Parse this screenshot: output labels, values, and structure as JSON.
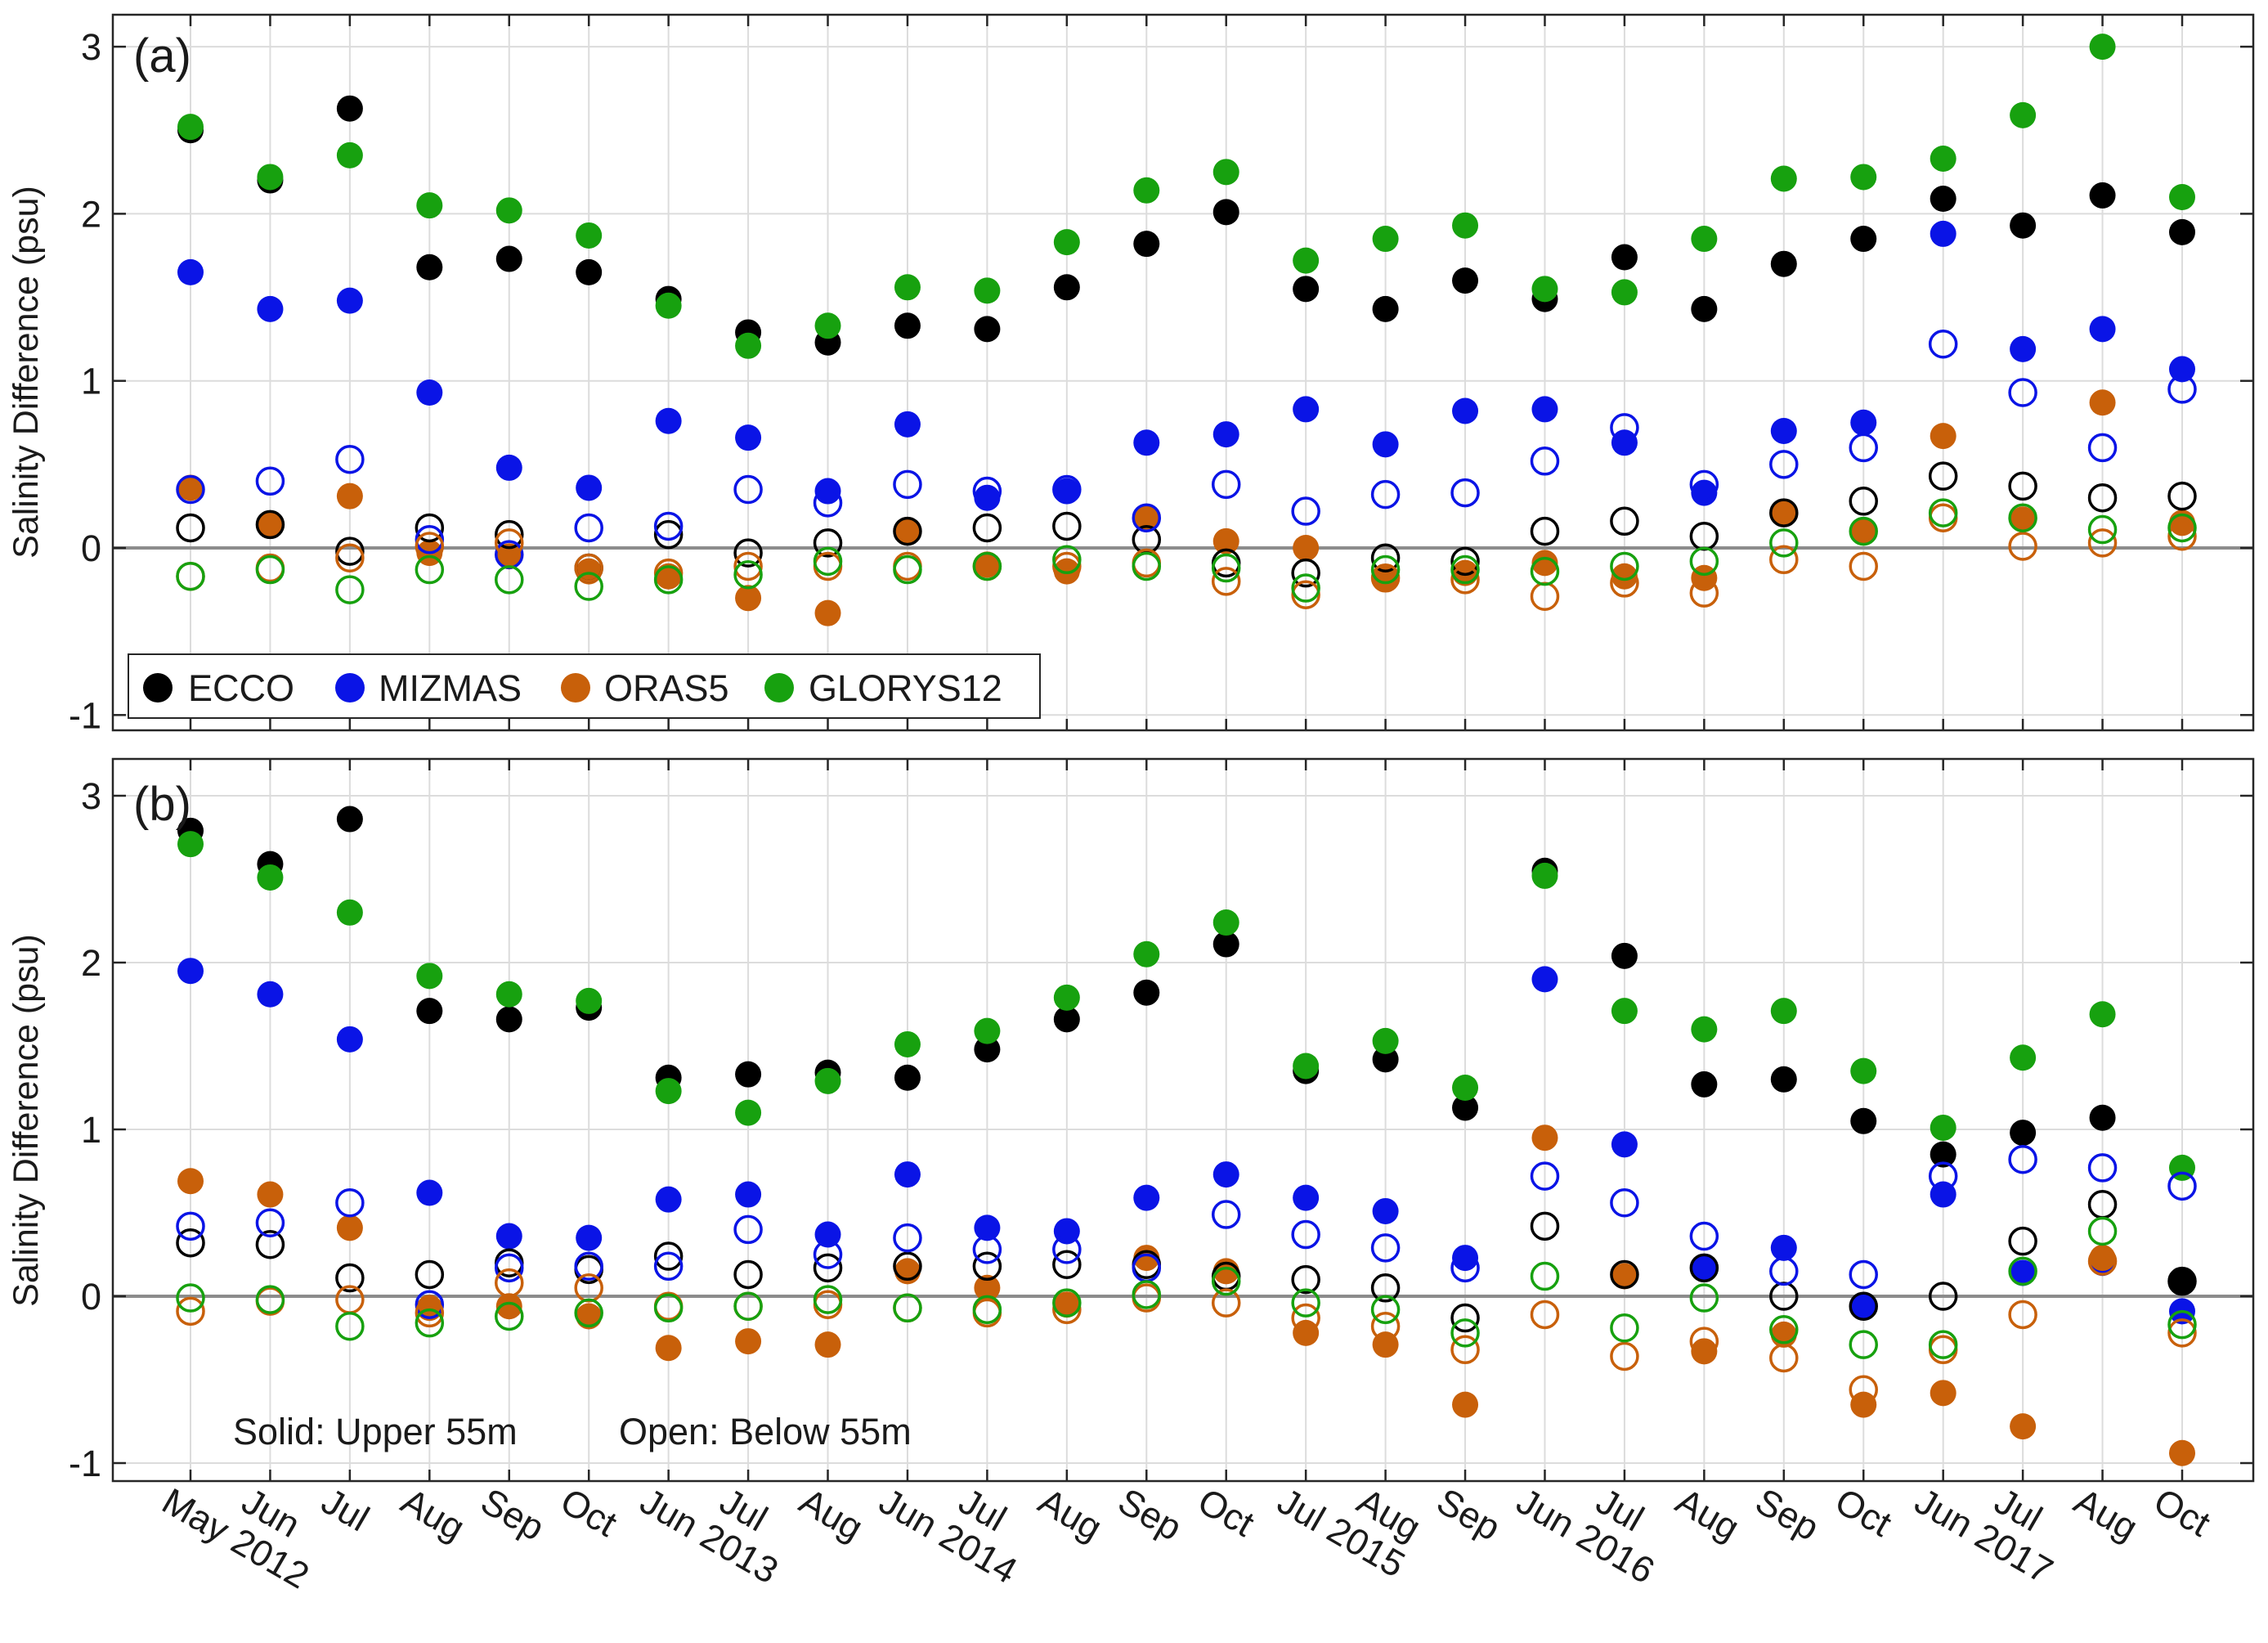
{
  "series_info": {
    "ECCO": {
      "color": "#000000"
    },
    "MIZMAS": {
      "color": "#0a14e6"
    },
    "ORAS5": {
      "color": "#c8600a"
    },
    "GLORYS12": {
      "color": "#17a10f"
    }
  },
  "legend": [
    "ECCO",
    "MIZMAS",
    "ORAS5",
    "GLORYS12"
  ],
  "note": {
    "solid": "Solid: Upper 55m",
    "open": "Open: Below 55m"
  },
  "chart_data": [
    {
      "type": "scatter",
      "panel_label": "(a)",
      "ylabel": "Salinity Difference (psu)",
      "ylim": [
        -1.1,
        3.2
      ],
      "yticks": [
        -1,
        0,
        1,
        2,
        3
      ],
      "grid": true,
      "legend_placement": "bottom-left",
      "categories": [
        "May 2012",
        "Jun",
        "Jul",
        "Aug",
        "Sep",
        "Oct",
        "Jun 2013",
        "Jul",
        "Aug",
        "Jun 2014",
        "Jul",
        "Aug",
        "Sep",
        "Oct",
        "Jul 2015",
        "Aug",
        "Sep",
        "Jun 2016",
        "Jul",
        "Aug",
        "Sep",
        "Oct",
        "Jun 2017",
        "Jul",
        "Aug",
        "Oct"
      ],
      "series": [
        {
          "name": "ECCO",
          "style": "solid",
          "values": [
            2.5,
            2.2,
            2.63,
            1.68,
            1.73,
            1.65,
            1.49,
            1.29,
            1.23,
            1.33,
            1.31,
            1.56,
            1.82,
            2.01,
            1.55,
            1.43,
            1.6,
            1.49,
            1.74,
            1.43,
            1.7,
            1.85,
            2.09,
            1.93,
            2.11,
            1.89
          ]
        },
        {
          "name": "MIZMAS",
          "style": "solid",
          "values": [
            1.65,
            1.43,
            1.48,
            0.93,
            0.48,
            0.36,
            0.76,
            0.66,
            0.34,
            0.74,
            0.3,
            0.34,
            0.63,
            0.68,
            0.83,
            0.62,
            0.82,
            0.83,
            0.63,
            0.33,
            0.7,
            0.75,
            1.88,
            1.19,
            1.31,
            1.07
          ]
        },
        {
          "name": "ORAS5",
          "style": "solid",
          "values": [
            0.36,
            0.14,
            0.31,
            -0.03,
            -0.05,
            -0.14,
            -0.17,
            -0.3,
            -0.39,
            0.1,
            -0.1,
            -0.14,
            0.18,
            0.04,
            0.0,
            -0.18,
            -0.15,
            -0.09,
            -0.17,
            -0.18,
            0.21,
            0.1,
            0.67,
            0.17,
            0.87,
            0.15
          ]
        },
        {
          "name": "GLORYS12",
          "style": "solid",
          "values": [
            2.52,
            2.22,
            2.35,
            2.05,
            2.02,
            1.87,
            1.45,
            1.21,
            1.33,
            1.56,
            1.54,
            1.83,
            2.14,
            2.25,
            1.72,
            1.85,
            1.93,
            1.55,
            1.53,
            1.85,
            2.21,
            2.22,
            2.33,
            2.59,
            3.0,
            2.1
          ]
        },
        {
          "name": "ECCO",
          "style": "open",
          "values": [
            0.12,
            0.14,
            -0.02,
            0.12,
            0.08,
            -0.12,
            0.08,
            -0.03,
            0.03,
            0.1,
            0.12,
            0.13,
            0.05,
            -0.09,
            -0.15,
            -0.06,
            -0.08,
            0.1,
            0.16,
            0.07,
            0.21,
            0.28,
            0.43,
            0.37,
            0.3,
            0.31
          ]
        },
        {
          "name": "MIZMAS",
          "style": "open",
          "values": [
            0.35,
            0.4,
            0.53,
            0.05,
            -0.04,
            0.12,
            0.13,
            0.35,
            0.27,
            0.38,
            0.34,
            0.35,
            0.18,
            0.38,
            0.22,
            0.32,
            0.33,
            0.52,
            0.72,
            0.38,
            0.5,
            0.6,
            1.22,
            0.93,
            0.6,
            0.95
          ]
        },
        {
          "name": "ORAS5",
          "style": "open",
          "values": [
            -0.17,
            -0.12,
            -0.06,
            0.01,
            0.03,
            -0.12,
            -0.15,
            -0.11,
            -0.11,
            -0.11,
            -0.11,
            -0.11,
            -0.09,
            -0.2,
            -0.28,
            -0.18,
            -0.19,
            -0.29,
            -0.21,
            -0.27,
            -0.07,
            -0.11,
            0.18,
            0.01,
            0.03,
            0.07
          ]
        },
        {
          "name": "GLORYS12",
          "style": "open",
          "values": [
            -0.17,
            -0.13,
            -0.25,
            -0.13,
            -0.19,
            -0.23,
            -0.19,
            -0.16,
            -0.08,
            -0.13,
            -0.11,
            -0.07,
            -0.11,
            -0.12,
            -0.24,
            -0.13,
            -0.13,
            -0.14,
            -0.11,
            -0.08,
            0.03,
            0.1,
            0.21,
            0.18,
            0.11,
            0.12
          ]
        }
      ]
    },
    {
      "type": "scatter",
      "panel_label": "(b)",
      "ylabel": "Salinity Difference (psu)",
      "ylim": [
        -1.1,
        3.2
      ],
      "yticks": [
        -1,
        0,
        1,
        2,
        3
      ],
      "grid": true,
      "categories": [
        "May 2012",
        "Jun",
        "Jul",
        "Aug",
        "Sep",
        "Oct",
        "Jun 2013",
        "Jul",
        "Aug",
        "Jun 2014",
        "Jul",
        "Aug",
        "Sep",
        "Oct",
        "Jul 2015",
        "Aug",
        "Sep",
        "Jun 2016",
        "Jul",
        "Aug",
        "Sep",
        "Oct",
        "Jun 2017",
        "Jul",
        "Aug",
        "Oct"
      ],
      "series": [
        {
          "name": "ECCO",
          "style": "solid",
          "values": [
            2.79,
            2.59,
            2.86,
            1.71,
            1.66,
            1.73,
            1.31,
            1.33,
            1.34,
            1.31,
            1.48,
            1.66,
            1.82,
            2.11,
            1.35,
            1.42,
            1.13,
            2.55,
            2.04,
            1.27,
            1.3,
            1.05,
            0.85,
            0.98,
            1.07,
            0.09
          ]
        },
        {
          "name": "MIZMAS",
          "style": "solid",
          "values": [
            1.95,
            1.81,
            1.54,
            0.62,
            0.36,
            0.35,
            0.58,
            0.61,
            0.37,
            0.73,
            0.41,
            0.39,
            0.59,
            0.73,
            0.59,
            0.51,
            0.23,
            1.9,
            0.91,
            0.17,
            0.29,
            -0.06,
            0.61,
            0.14,
            0.2,
            -0.09
          ]
        },
        {
          "name": "ORAS5",
          "style": "solid",
          "values": [
            0.69,
            0.61,
            0.41,
            -0.07,
            -0.06,
            -0.12,
            -0.31,
            -0.27,
            -0.29,
            0.15,
            0.05,
            -0.05,
            0.23,
            0.15,
            -0.22,
            -0.29,
            -0.65,
            0.95,
            0.12,
            -0.33,
            -0.23,
            -0.65,
            -0.58,
            -0.78,
            0.23,
            -0.94
          ]
        },
        {
          "name": "GLORYS12",
          "style": "solid",
          "values": [
            2.71,
            2.51,
            2.3,
            1.92,
            1.81,
            1.77,
            1.23,
            1.1,
            1.29,
            1.51,
            1.59,
            1.79,
            2.05,
            2.24,
            1.38,
            1.53,
            1.25,
            2.52,
            1.71,
            1.6,
            1.71,
            1.35,
            1.01,
            1.43,
            1.69,
            0.77
          ]
        },
        {
          "name": "ECCO",
          "style": "open",
          "values": [
            0.32,
            0.31,
            0.11,
            0.13,
            0.2,
            0.16,
            0.24,
            0.13,
            0.17,
            0.18,
            0.18,
            0.19,
            0.19,
            0.12,
            0.1,
            0.05,
            -0.13,
            0.42,
            0.13,
            0.17,
            0.0,
            -0.06,
            0.0,
            0.33,
            0.55,
            0.09
          ]
        },
        {
          "name": "MIZMAS",
          "style": "open",
          "values": [
            0.42,
            0.44,
            0.56,
            -0.05,
            0.17,
            0.18,
            0.18,
            0.4,
            0.25,
            0.35,
            0.28,
            0.28,
            0.17,
            0.49,
            0.37,
            0.29,
            0.17,
            0.72,
            0.56,
            0.36,
            0.15,
            0.13,
            0.72,
            0.82,
            0.77,
            0.66
          ]
        },
        {
          "name": "ORAS5",
          "style": "open",
          "values": [
            -0.09,
            -0.03,
            -0.02,
            -0.1,
            0.08,
            0.05,
            -0.06,
            -0.06,
            -0.05,
            -0.07,
            -0.1,
            -0.08,
            -0.01,
            -0.04,
            -0.13,
            -0.18,
            -0.32,
            -0.11,
            -0.36,
            -0.27,
            -0.37,
            -0.56,
            -0.32,
            -0.11,
            0.21,
            -0.22
          ]
        },
        {
          "name": "GLORYS12",
          "style": "open",
          "values": [
            -0.01,
            -0.02,
            -0.18,
            -0.16,
            -0.12,
            -0.1,
            -0.07,
            -0.06,
            -0.02,
            -0.07,
            -0.08,
            -0.04,
            0.01,
            0.09,
            -0.04,
            -0.08,
            -0.22,
            0.12,
            -0.19,
            -0.01,
            -0.2,
            -0.29,
            -0.29,
            0.15,
            0.39,
            -0.17
          ]
        }
      ]
    }
  ]
}
